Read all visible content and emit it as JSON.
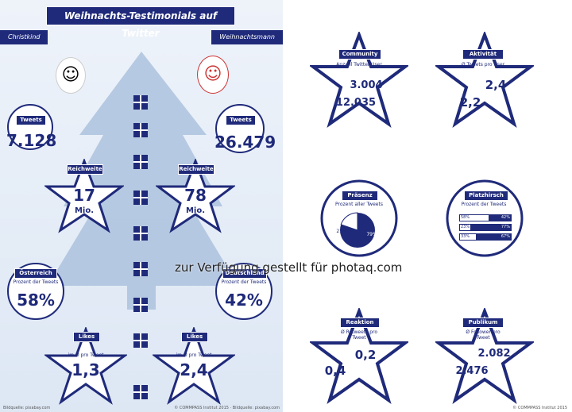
{
  "header": {
    "title": "Weihnachts-Testimonials auf Twitter",
    "left_label": "Christkind",
    "right_label": "Weihnachtsmann"
  },
  "left": {
    "tweets": {
      "label": "Tweets",
      "christkind": "7.128",
      "weihnachtsmann": "26.479"
    },
    "reichweite": {
      "label": "Reichweite",
      "christkind": "17",
      "weihnachtsmann": "78",
      "unit": "Mio."
    },
    "oesterreich": {
      "label": "Österreich",
      "sub": "Prozent der Tweets",
      "value": "58%"
    },
    "deutschland": {
      "label": "Deutschland",
      "sub": "Prozent der Tweets",
      "value": "42%"
    },
    "likes": {
      "label": "Likes",
      "sub": "im Ø pro Tweet",
      "christkind": "1,3",
      "weihnachtsmann": "2,4"
    }
  },
  "right": {
    "community": {
      "label": "Community",
      "sub": "Anzahl Twitter-User",
      "christkind": "3.004",
      "weihnachtsmann": "12.035"
    },
    "aktivitaet": {
      "label": "Aktivität",
      "sub": "Ø Tweets pro User",
      "christkind": "2,4",
      "weihnachtsmann": "2,2"
    },
    "praesenz": {
      "label": "Präsenz",
      "sub": "Prozent aller Tweets",
      "christkind": "21%",
      "weihnachtsmann": "79%"
    },
    "platzhirsch": {
      "label": "Platzhirsch",
      "sub": "Prozent der Tweets",
      "rows": [
        {
          "left": "58%",
          "right": "42%",
          "share": 0.58
        },
        {
          "left": "23%",
          "right": "77%",
          "share": 0.23
        },
        {
          "left": "33%",
          "right": "67%",
          "share": 0.33
        }
      ]
    },
    "reaktion": {
      "label": "Reaktion",
      "sub": "Ø Retweets pro Tweet",
      "christkind": "0,2",
      "weihnachtsmann": "0,4"
    },
    "publikum": {
      "label": "Publikum",
      "sub": "Ø Follower pro Tweet",
      "christkind": "2.082",
      "weihnachtsmann": "2.476"
    }
  },
  "footer": {
    "left": "Bildquelle: pixabay.com",
    "mid": "© COMMPASS Institut 2015 · Bildquelle: pixabay.com",
    "right": "© COMMPASS Institut 2015"
  },
  "watermark": "zur Verfügung gestellt für photaq.com",
  "colors": {
    "navy": "#1f2a7a",
    "bg": "#e5ecf6",
    "tree": "#a9bfdc"
  }
}
